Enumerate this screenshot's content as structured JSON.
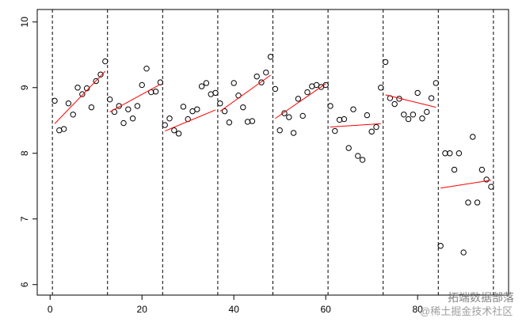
{
  "chart_data": {
    "type": "scatter",
    "x": [
      1,
      2,
      3,
      4,
      5,
      6,
      7,
      8,
      9,
      10,
      11,
      12,
      13,
      14,
      15,
      16,
      17,
      18,
      19,
      20,
      21,
      22,
      23,
      24,
      25,
      26,
      27,
      28,
      29,
      30,
      31,
      32,
      33,
      34,
      35,
      36,
      37,
      38,
      39,
      40,
      41,
      42,
      43,
      44,
      45,
      46,
      47,
      48,
      49,
      50,
      51,
      52,
      53,
      54,
      55,
      56,
      57,
      58,
      59,
      60,
      61,
      62,
      63,
      64,
      65,
      66,
      67,
      68,
      69,
      70,
      71,
      72,
      73,
      74,
      75,
      76,
      77,
      78,
      79,
      80,
      81,
      82,
      83,
      84,
      85,
      86,
      87,
      88,
      89,
      90,
      91,
      92,
      93,
      94,
      95,
      96
    ],
    "values": [
      8.8,
      8.35,
      8.37,
      8.76,
      8.59,
      9.0,
      8.9,
      8.99,
      8.7,
      9.1,
      9.2,
      9.4,
      8.82,
      8.63,
      8.72,
      8.46,
      8.67,
      8.53,
      8.72,
      9.04,
      9.29,
      8.93,
      8.94,
      9.08,
      8.43,
      8.53,
      8.35,
      8.3,
      8.71,
      8.52,
      8.64,
      8.67,
      9.02,
      9.07,
      8.9,
      8.92,
      8.76,
      8.64,
      8.47,
      9.07,
      8.88,
      8.7,
      8.48,
      8.49,
      9.17,
      9.08,
      9.23,
      9.47,
      8.98,
      8.35,
      8.61,
      8.55,
      8.31,
      8.83,
      8.57,
      8.93,
      9.02,
      9.04,
      9.01,
      9.04,
      8.72,
      8.34,
      8.51,
      8.52,
      8.08,
      8.67,
      7.96,
      7.9,
      8.58,
      8.33,
      8.4,
      9.0,
      9.39,
      8.84,
      8.75,
      8.83,
      8.59,
      8.52,
      8.59,
      8.92,
      8.53,
      8.63,
      8.84,
      9.07,
      6.59,
      8.0,
      8.0,
      7.75,
      8.0,
      6.49,
      7.25,
      8.25,
      7.25,
      7.75,
      7.6,
      7.49
    ],
    "color": "#000000",
    "fit_color": "#ff0000",
    "fits": [
      {
        "x": [
          1,
          12
        ],
        "y": [
          8.45,
          9.25
        ]
      },
      {
        "x": [
          13,
          24
        ],
        "y": [
          8.63,
          9.05
        ]
      },
      {
        "x": [
          25,
          36
        ],
        "y": [
          8.34,
          8.66
        ]
      },
      {
        "x": [
          37,
          48
        ],
        "y": [
          8.64,
          9.19
        ]
      },
      {
        "x": [
          49,
          60
        ],
        "y": [
          8.53,
          9.06
        ]
      },
      {
        "x": [
          61,
          72
        ],
        "y": [
          8.4,
          8.45
        ]
      },
      {
        "x": [
          73,
          84
        ],
        "y": [
          8.89,
          8.7
        ]
      },
      {
        "x": [
          85,
          96
        ],
        "y": [
          7.47,
          7.59
        ]
      }
    ],
    "vlines": [
      0.5,
      12.5,
      24.5,
      36.5,
      48.5,
      60.5,
      72.5,
      84.5,
      96.5
    ],
    "xlim": [
      -2.8,
      99.8
    ],
    "ylim": [
      5.84,
      10.19
    ],
    "xticks": [
      0,
      20,
      40,
      60,
      80
    ],
    "yticks": [
      6,
      7,
      8,
      9,
      10
    ],
    "watermark": [
      "拓端数据部落",
      "@稀土掘金技术社区"
    ]
  }
}
